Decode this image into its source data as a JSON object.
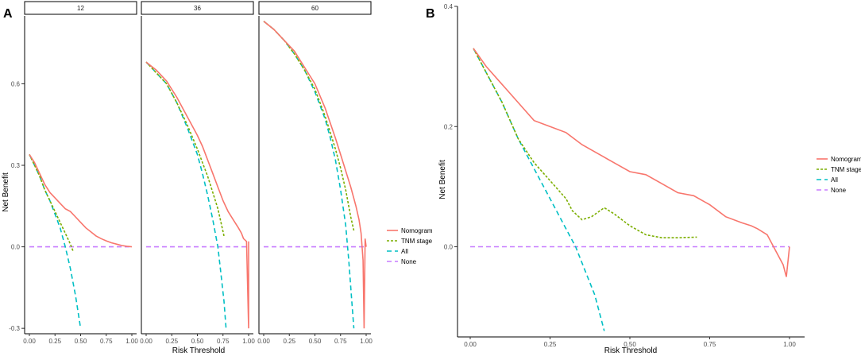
{
  "colors": {
    "nomogram": "#F8766D",
    "tnm": "#7CAE00",
    "all": "#00BFC4",
    "none": "#C77CFF"
  },
  "panels": {
    "a_label": "A",
    "b_label": "B"
  },
  "legend": [
    "Nomogram",
    "TNM stage",
    "All",
    "None"
  ],
  "chart_data": [
    {
      "type": "line",
      "panel": "A",
      "facets": [
        "12",
        "36",
        "60"
      ],
      "xlabel": "Risk Threshold",
      "ylabel": "Net Benefit",
      "xlim": [
        0,
        1
      ],
      "ylim": [
        -0.32,
        0.85
      ],
      "xticks": [
        "0.00",
        "0.25",
        "0.50",
        "0.75",
        "1.00"
      ],
      "yticks": [
        "-0.3",
        "0.0",
        "0.3",
        "0.6"
      ],
      "data": {
        "12": {
          "Nomogram": [
            [
              0,
              0.34
            ],
            [
              0.05,
              0.31
            ],
            [
              0.1,
              0.27
            ],
            [
              0.15,
              0.23
            ],
            [
              0.2,
              0.2
            ],
            [
              0.25,
              0.18
            ],
            [
              0.3,
              0.16
            ],
            [
              0.35,
              0.14
            ],
            [
              0.4,
              0.13
            ],
            [
              0.45,
              0.11
            ],
            [
              0.5,
              0.09
            ],
            [
              0.55,
              0.07
            ],
            [
              0.6,
              0.055
            ],
            [
              0.65,
              0.04
            ],
            [
              0.7,
              0.03
            ],
            [
              0.75,
              0.022
            ],
            [
              0.8,
              0.015
            ],
            [
              0.85,
              0.01
            ],
            [
              0.9,
              0.005
            ],
            [
              0.95,
              0.002
            ],
            [
              1.0,
              0.0
            ]
          ],
          "TNM stage": [
            [
              0,
              0.34
            ],
            [
              0.05,
              0.3
            ],
            [
              0.1,
              0.26
            ],
            [
              0.15,
              0.21
            ],
            [
              0.2,
              0.17
            ],
            [
              0.25,
              0.13
            ],
            [
              0.3,
              0.09
            ],
            [
              0.35,
              0.05
            ],
            [
              0.4,
              0.01
            ],
            [
              0.43,
              -0.02
            ]
          ],
          "All": [
            [
              0,
              0.34
            ],
            [
              0.05,
              0.3
            ],
            [
              0.1,
              0.26
            ],
            [
              0.15,
              0.21
            ],
            [
              0.2,
              0.17
            ],
            [
              0.25,
              0.12
            ],
            [
              0.3,
              0.07
            ],
            [
              0.35,
              0.0
            ],
            [
              0.4,
              -0.08
            ],
            [
              0.45,
              -0.18
            ],
            [
              0.5,
              -0.3
            ]
          ],
          "None": [
            [
              0,
              0
            ],
            [
              1,
              0
            ]
          ]
        },
        "36": {
          "Nomogram": [
            [
              0,
              0.68
            ],
            [
              0.1,
              0.65
            ],
            [
              0.2,
              0.61
            ],
            [
              0.3,
              0.55
            ],
            [
              0.4,
              0.48
            ],
            [
              0.5,
              0.41
            ],
            [
              0.55,
              0.37
            ],
            [
              0.6,
              0.32
            ],
            [
              0.65,
              0.27
            ],
            [
              0.7,
              0.22
            ],
            [
              0.75,
              0.17
            ],
            [
              0.8,
              0.13
            ],
            [
              0.85,
              0.1
            ],
            [
              0.9,
              0.07
            ],
            [
              0.93,
              0.05
            ],
            [
              0.95,
              0.03
            ],
            [
              0.98,
              0.02
            ],
            [
              1.0,
              -0.3
            ],
            [
              1.0,
              0.02
            ]
          ],
          "TNM stage": [
            [
              0,
              0.68
            ],
            [
              0.1,
              0.64
            ],
            [
              0.2,
              0.6
            ],
            [
              0.3,
              0.53
            ],
            [
              0.4,
              0.45
            ],
            [
              0.5,
              0.36
            ],
            [
              0.55,
              0.31
            ],
            [
              0.6,
              0.26
            ],
            [
              0.65,
              0.2
            ],
            [
              0.7,
              0.14
            ],
            [
              0.73,
              0.09
            ],
            [
              0.76,
              0.04
            ]
          ],
          "All": [
            [
              0,
              0.68
            ],
            [
              0.1,
              0.64
            ],
            [
              0.2,
              0.6
            ],
            [
              0.3,
              0.53
            ],
            [
              0.4,
              0.44
            ],
            [
              0.5,
              0.34
            ],
            [
              0.55,
              0.27
            ],
            [
              0.6,
              0.19
            ],
            [
              0.65,
              0.1
            ],
            [
              0.7,
              0.0
            ],
            [
              0.73,
              -0.1
            ],
            [
              0.76,
              -0.2
            ],
            [
              0.78,
              -0.3
            ]
          ],
          "None": [
            [
              0,
              0
            ],
            [
              1,
              0
            ]
          ]
        },
        "60": {
          "Nomogram": [
            [
              0,
              0.83
            ],
            [
              0.1,
              0.8
            ],
            [
              0.2,
              0.76
            ],
            [
              0.3,
              0.72
            ],
            [
              0.4,
              0.66
            ],
            [
              0.5,
              0.6
            ],
            [
              0.6,
              0.51
            ],
            [
              0.7,
              0.4
            ],
            [
              0.75,
              0.34
            ],
            [
              0.8,
              0.28
            ],
            [
              0.85,
              0.22
            ],
            [
              0.9,
              0.15
            ],
            [
              0.93,
              0.1
            ],
            [
              0.95,
              0.05
            ],
            [
              0.97,
              -0.05
            ],
            [
              0.98,
              -0.3
            ],
            [
              0.99,
              0.03
            ],
            [
              1.0,
              0.0
            ]
          ],
          "TNM stage": [
            [
              0,
              0.83
            ],
            [
              0.1,
              0.8
            ],
            [
              0.2,
              0.76
            ],
            [
              0.3,
              0.71
            ],
            [
              0.4,
              0.65
            ],
            [
              0.5,
              0.58
            ],
            [
              0.6,
              0.48
            ],
            [
              0.7,
              0.36
            ],
            [
              0.75,
              0.29
            ],
            [
              0.8,
              0.21
            ],
            [
              0.85,
              0.11
            ],
            [
              0.88,
              0.06
            ]
          ],
          "All": [
            [
              0,
              0.83
            ],
            [
              0.1,
              0.8
            ],
            [
              0.2,
              0.76
            ],
            [
              0.3,
              0.71
            ],
            [
              0.4,
              0.65
            ],
            [
              0.5,
              0.57
            ],
            [
              0.6,
              0.47
            ],
            [
              0.65,
              0.4
            ],
            [
              0.7,
              0.32
            ],
            [
              0.75,
              0.21
            ],
            [
              0.8,
              0.08
            ],
            [
              0.83,
              -0.05
            ],
            [
              0.86,
              -0.2
            ],
            [
              0.88,
              -0.3
            ]
          ],
          "None": [
            [
              0,
              0
            ],
            [
              1,
              0
            ]
          ]
        }
      }
    },
    {
      "type": "line",
      "panel": "B",
      "xlabel": "Risk Threshold",
      "ylabel": "Net Benefit",
      "xlim": [
        0,
        1
      ],
      "ylim": [
        -0.15,
        0.4
      ],
      "xticks": [
        "0.00",
        "0.25",
        "0.50",
        "0.75",
        "1.00"
      ],
      "yticks": [
        "0.0",
        "0.2",
        "0.4"
      ],
      "series": [
        {
          "name": "Nomogram",
          "points": [
            [
              0.01,
              0.33
            ],
            [
              0.05,
              0.3
            ],
            [
              0.1,
              0.27
            ],
            [
              0.15,
              0.24
            ],
            [
              0.2,
              0.21
            ],
            [
              0.25,
              0.2
            ],
            [
              0.3,
              0.19
            ],
            [
              0.35,
              0.17
            ],
            [
              0.4,
              0.155
            ],
            [
              0.45,
              0.14
            ],
            [
              0.5,
              0.125
            ],
            [
              0.55,
              0.12
            ],
            [
              0.6,
              0.105
            ],
            [
              0.65,
              0.09
            ],
            [
              0.7,
              0.085
            ],
            [
              0.75,
              0.07
            ],
            [
              0.8,
              0.05
            ],
            [
              0.85,
              0.04
            ],
            [
              0.88,
              0.035
            ],
            [
              0.9,
              0.03
            ],
            [
              0.93,
              0.02
            ],
            [
              0.95,
              0.0
            ],
            [
              0.98,
              -0.03
            ],
            [
              0.99,
              -0.05
            ],
            [
              1.0,
              0.0
            ]
          ]
        },
        {
          "name": "TNM stage",
          "points": [
            [
              0.01,
              0.33
            ],
            [
              0.05,
              0.29
            ],
            [
              0.1,
              0.24
            ],
            [
              0.15,
              0.18
            ],
            [
              0.2,
              0.14
            ],
            [
              0.25,
              0.11
            ],
            [
              0.3,
              0.08
            ],
            [
              0.32,
              0.06
            ],
            [
              0.35,
              0.045
            ],
            [
              0.38,
              0.05
            ],
            [
              0.42,
              0.065
            ],
            [
              0.45,
              0.055
            ],
            [
              0.5,
              0.035
            ],
            [
              0.55,
              0.02
            ],
            [
              0.6,
              0.015
            ],
            [
              0.65,
              0.015
            ],
            [
              0.71,
              0.016
            ]
          ]
        },
        {
          "name": "All",
          "points": [
            [
              0.01,
              0.33
            ],
            [
              0.05,
              0.29
            ],
            [
              0.1,
              0.24
            ],
            [
              0.15,
              0.18
            ],
            [
              0.2,
              0.13
            ],
            [
              0.25,
              0.08
            ],
            [
              0.3,
              0.03
            ],
            [
              0.33,
              0.0
            ],
            [
              0.36,
              -0.04
            ],
            [
              0.39,
              -0.08
            ],
            [
              0.42,
              -0.14
            ]
          ]
        },
        {
          "name": "None",
          "points": [
            [
              0,
              0
            ],
            [
              1,
              0
            ]
          ]
        }
      ]
    }
  ]
}
